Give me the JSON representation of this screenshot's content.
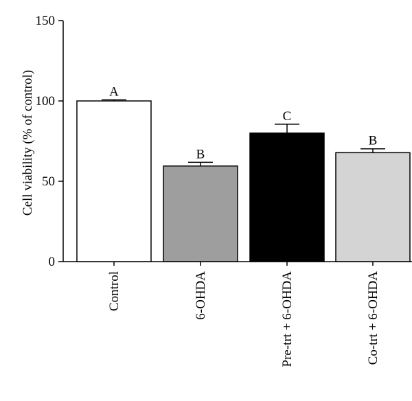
{
  "chart_data": {
    "type": "bar",
    "title": "",
    "xlabel": "",
    "ylabel": "Cell viability (% of control)",
    "ylim": [
      0,
      150
    ],
    "yticks": [
      0,
      50,
      100,
      150
    ],
    "grid": false,
    "categories": [
      "Control",
      "6-OHDA",
      "Pre-trt + 6-OHDA",
      "Co-trt + 6-OHDA"
    ],
    "values": [
      100,
      59.5,
      80,
      67.8
    ],
    "errors": [
      0.7,
      2.3,
      5.5,
      2.4
    ],
    "significance": [
      "A",
      "B",
      "C",
      "B"
    ],
    "colors": [
      "#ffffff",
      "#9e9e9e",
      "#000000",
      "#d4d4d4"
    ]
  }
}
